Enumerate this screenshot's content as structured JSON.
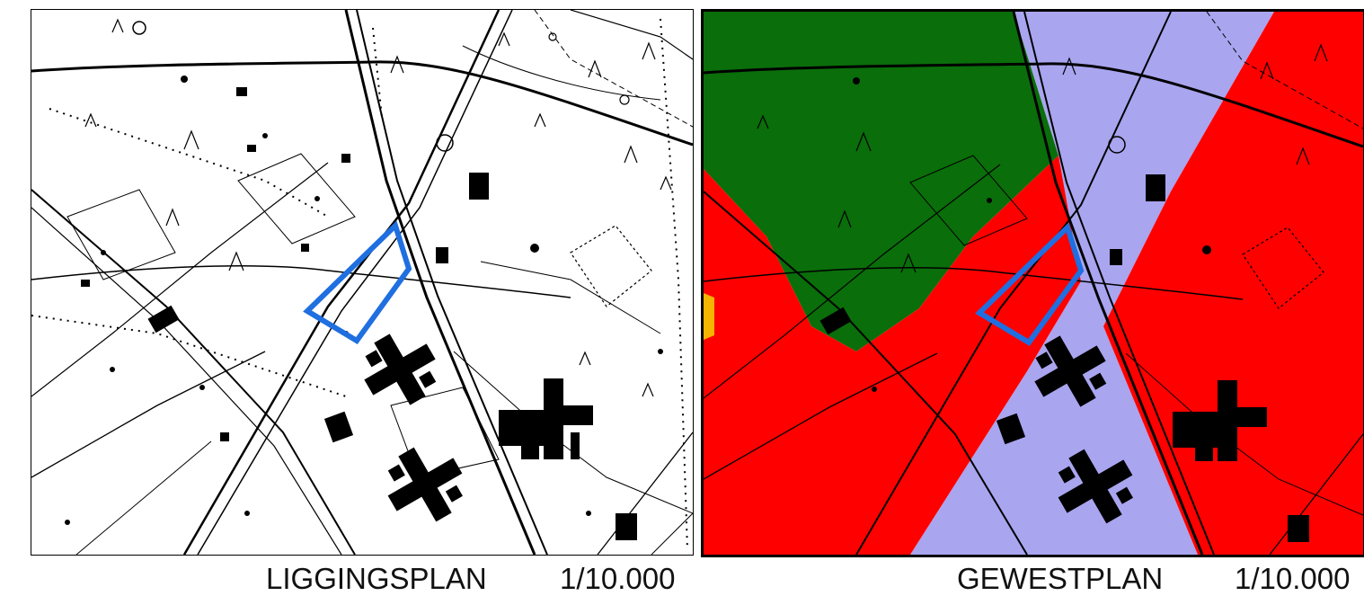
{
  "left_map": {
    "title": "LIGGINGSPLAN",
    "scale": "1/10.000"
  },
  "right_map": {
    "title": "GEWESTPLAN",
    "scale": "1/10.000"
  },
  "colors": {
    "parcel_outline": "#1f6fe0",
    "zone_green": "#0a6e0a",
    "zone_red": "#ff0000",
    "zone_lavender": "#a9a5ef",
    "zone_orange": "#f4b400",
    "linework": "#000000",
    "background": "#ffffff"
  }
}
